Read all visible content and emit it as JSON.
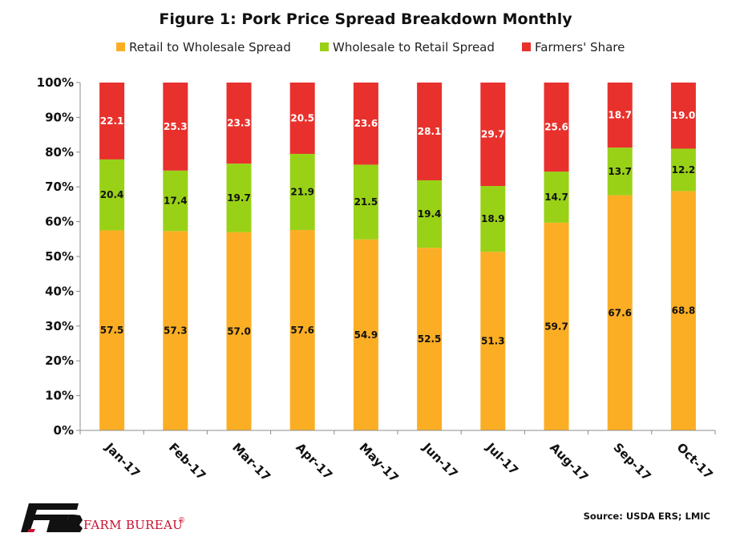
{
  "chart_data": {
    "type": "bar",
    "stacked": true,
    "normalized": true,
    "title": "Figure 1: Pork Price Spread Breakdown Monthly",
    "categories": [
      "Jan-17",
      "Feb-17",
      "Mar-17",
      "Apr-17",
      "May-17",
      "Jun-17",
      "Jul-17",
      "Aug-17",
      "Sep-17",
      "Oct-17"
    ],
    "series": [
      {
        "name": "Retail to Wholesale Spread",
        "color": "#fbae24",
        "label_color": "#111111",
        "values": [
          57.5,
          57.3,
          57.0,
          57.6,
          54.9,
          52.5,
          51.3,
          59.7,
          67.6,
          68.8
        ],
        "labels": [
          "57.5",
          "57.3",
          "57.0",
          "57.6",
          "54.9",
          "52.5",
          "51.3",
          "59.7",
          "67.6",
          "68.8"
        ]
      },
      {
        "name": "Wholesale to Retail Spread",
        "color": "#99d117",
        "label_color": "#111111",
        "values": [
          20.4,
          17.4,
          19.7,
          21.9,
          21.5,
          19.4,
          18.9,
          14.7,
          13.7,
          12.2
        ],
        "labels": [
          "20.4",
          "17.4",
          "19.7",
          "21.9",
          "21.5",
          "19.4",
          "18.9",
          "14.7",
          "13.7",
          "12.2"
        ]
      },
      {
        "name": "Farmers' Share",
        "color": "#e8312c",
        "label_color": "#ffffff",
        "values": [
          22.1,
          25.3,
          23.3,
          20.5,
          23.6,
          28.1,
          29.7,
          25.6,
          18.7,
          19.0
        ],
        "labels": [
          "22.1",
          "25.3",
          "23.3",
          "20.5",
          "23.6",
          "28.1",
          "29.7",
          "25.6",
          "18.7",
          "19.0"
        ]
      }
    ],
    "yticks": [
      "0%",
      "10%",
      "20%",
      "30%",
      "40%",
      "50%",
      "60%",
      "70%",
      "80%",
      "90%",
      "100%"
    ],
    "ylim": [
      0,
      100
    ],
    "grid": false,
    "legend_position": "top",
    "source": "Source: USDA ERS; LMIC"
  },
  "logo": {
    "text": "FARM BUREAU",
    "mark": "®",
    "color": "#c8102e",
    "icon": "farm-bureau-fb-logo"
  }
}
